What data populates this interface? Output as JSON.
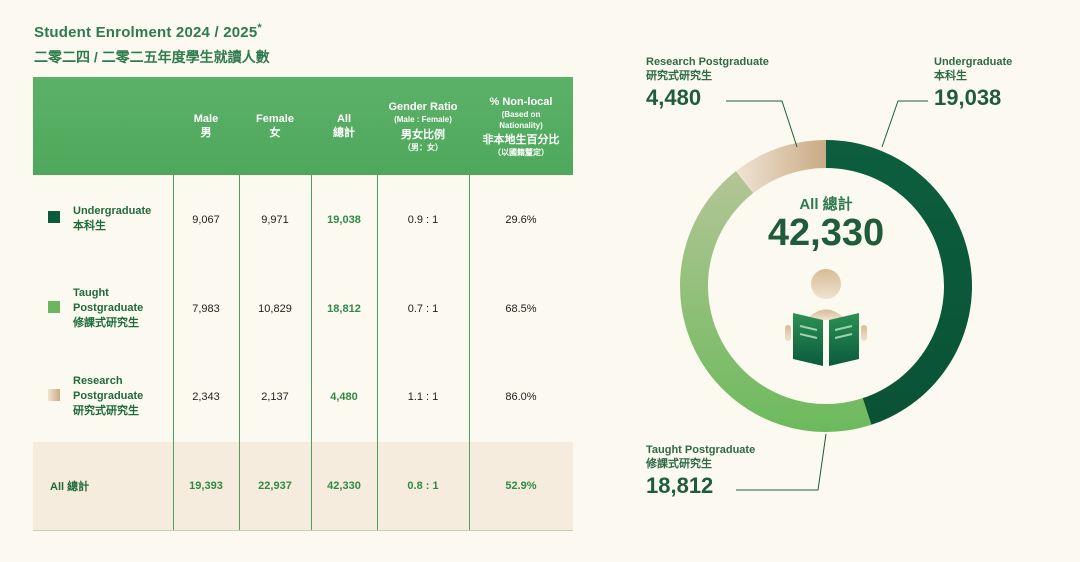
{
  "title": "Student Enrolment 2024 / 2025",
  "title_mark": "*",
  "subtitle": "二零二四 / 二零二五年度學生就讀人數",
  "table": {
    "headers": [
      {
        "en": "Male",
        "zh": "男"
      },
      {
        "en": "Female",
        "zh": "女"
      },
      {
        "en": "All",
        "zh": "總計"
      },
      {
        "en": "Gender Ratio",
        "en_sub": "(Male : Female)",
        "zh": "男女比例",
        "zh_sub": "（男：女）"
      },
      {
        "en": "% Non-local",
        "en_sub1": "(Based on",
        "en_sub2": "Nationality)",
        "zh": "非本地生百分比",
        "zh_sub": "（以國籍釐定）"
      }
    ],
    "rows": [
      {
        "label_lines": [
          "Undergraduate",
          "本科生"
        ],
        "male": "9,067",
        "female": "9,971",
        "all": "19,038",
        "ratio": "0.9 : 1",
        "nonlocal": "29.6%",
        "swatch": "#0b5a3c"
      },
      {
        "label_lines": [
          "Taught",
          "Postgraduate",
          "修課式研究生"
        ],
        "male": "7,983",
        "female": "10,829",
        "all": "18,812",
        "ratio": "0.7 : 1",
        "nonlocal": "68.5%",
        "swatch": "#6db65f"
      },
      {
        "label_lines": [
          "Research",
          "Postgraduate",
          "研究式研究生"
        ],
        "male": "2,343",
        "female": "2,137",
        "all": "4,480",
        "ratio": "1.1 : 1",
        "nonlocal": "86.0%",
        "swatch": "#dcc6a7"
      }
    ],
    "total": {
      "label": "All 總計",
      "male": "19,393",
      "female": "22,937",
      "all": "42,330",
      "ratio": "0.8 : 1",
      "nonlocal": "52.9%"
    }
  },
  "donut": {
    "center_label": "All 總計",
    "center_value": "42,330",
    "callouts": {
      "undergraduate": {
        "name": "Undergraduate",
        "zh": "本科生",
        "value": "19,038"
      },
      "research": {
        "name": "Research Postgraduate",
        "zh": "研究式研究生",
        "value": "4,480"
      },
      "taught": {
        "name": "Taught Postgraduate",
        "zh": "修課式研究生",
        "value": "18,812"
      }
    }
  },
  "chart_data": {
    "type": "pie",
    "title": "Student Enrolment 2024 / 2025",
    "categories": [
      "Undergraduate",
      "Taught Postgraduate",
      "Research Postgraduate"
    ],
    "values": [
      19038,
      18812,
      4480
    ],
    "total": 42330,
    "colors": [
      "#0b5a3c",
      "#6db65f",
      "#dcc6a7"
    ]
  }
}
